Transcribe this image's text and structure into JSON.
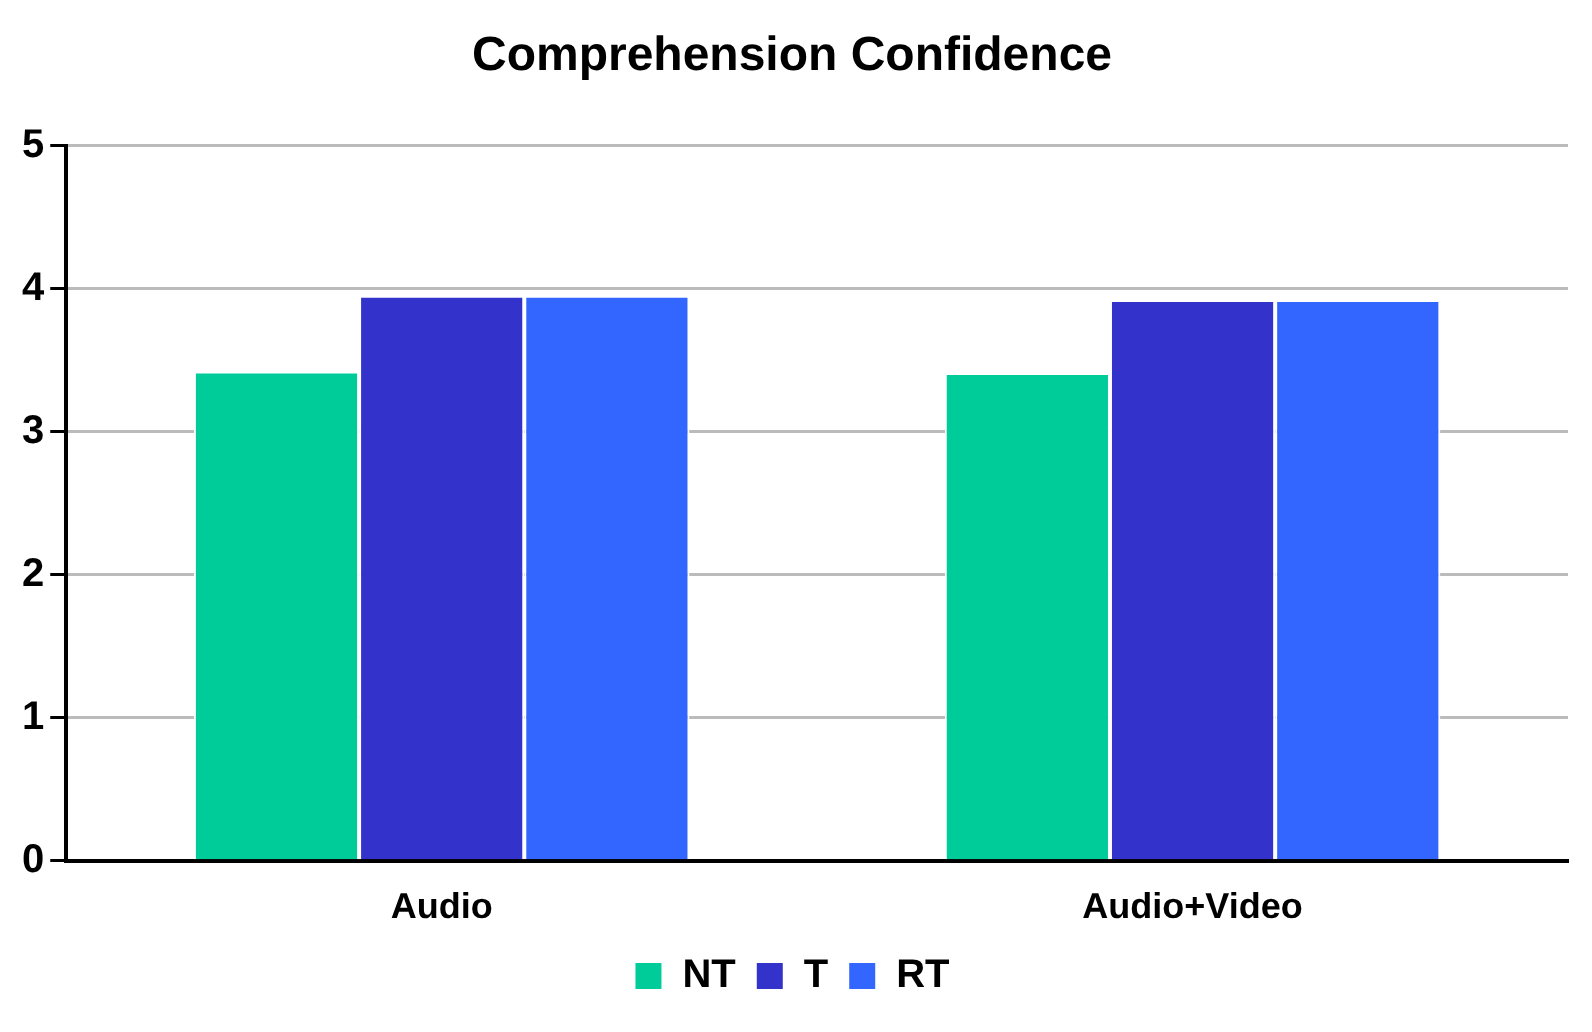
{
  "chart_data": {
    "type": "bar",
    "title": "Comprehension Confidence",
    "categories": [
      "Audio",
      "Audio+Video"
    ],
    "series": [
      {
        "name": "NT",
        "color": "#00cc99",
        "values": [
          3.42,
          3.41
        ]
      },
      {
        "name": "T",
        "color": "#3333cc",
        "values": [
          3.95,
          3.92
        ]
      },
      {
        "name": "RT",
        "color": "#3366ff",
        "values": [
          3.95,
          3.92
        ]
      }
    ],
    "ylim": [
      0,
      5
    ],
    "yticks": [
      0,
      1,
      2,
      3,
      4,
      5
    ],
    "grid": "y",
    "legend": "bottom"
  }
}
